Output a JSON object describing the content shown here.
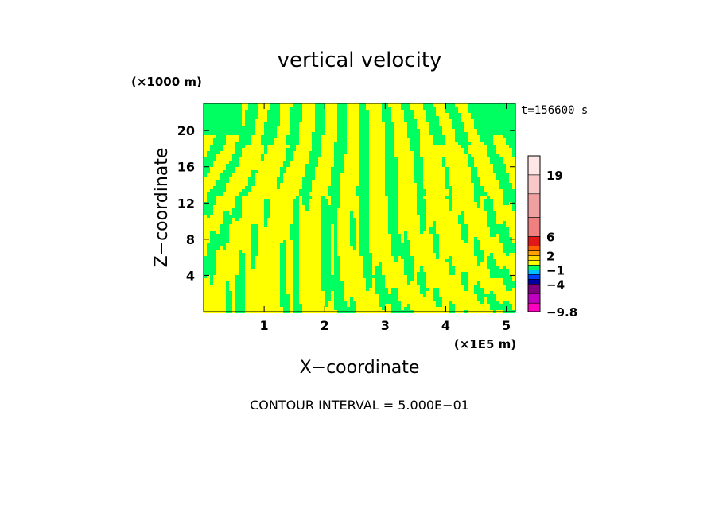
{
  "chart_data": {
    "type": "heatmap",
    "title": "vertical velocity",
    "xlabel": "X−coordinate",
    "ylabel": "Z−coordinate",
    "x_unit_label": "(×1E5 m)",
    "y_unit_label": "(×1000 m)",
    "xlim": [
      0,
      5.15
    ],
    "ylim": [
      0,
      23
    ],
    "x_ticks": [
      1,
      2,
      3,
      4,
      5
    ],
    "x_tick_labels": [
      "1",
      "2",
      "3",
      "4",
      "5"
    ],
    "y_ticks": [
      4,
      8,
      12,
      16,
      20
    ],
    "y_tick_labels": [
      "4",
      "8",
      "12",
      "16",
      "20"
    ],
    "time_label": "t=156600 s",
    "footer": "CONTOUR INTERVAL = 5.000E−01",
    "colorbar": {
      "min": -9.8,
      "max": 23,
      "labels": [
        {
          "value": 19,
          "text": "19"
        },
        {
          "value": 6,
          "text": "6"
        },
        {
          "value": 2,
          "text": "2"
        },
        {
          "value": -1,
          "text": "−1"
        },
        {
          "value": -4,
          "text": "−4"
        },
        {
          "value": -9.8,
          "text": "−9.8"
        }
      ],
      "bands": [
        {
          "from": 19,
          "to": 23,
          "color": "#ffe6e6"
        },
        {
          "from": 15,
          "to": 19,
          "color": "#f8c8c8"
        },
        {
          "from": 10,
          "to": 15,
          "color": "#f0a0a0"
        },
        {
          "from": 6,
          "to": 10,
          "color": "#f08080"
        },
        {
          "from": 4,
          "to": 6,
          "color": "#e01818"
        },
        {
          "from": 3,
          "to": 4,
          "color": "#ff6000"
        },
        {
          "from": 2,
          "to": 3,
          "color": "#ffa000"
        },
        {
          "from": 1,
          "to": 2,
          "color": "#ffd800"
        },
        {
          "from": 0,
          "to": 1,
          "color": "#ffff00"
        },
        {
          "from": -1,
          "to": 0,
          "color": "#00ff60"
        },
        {
          "from": -2,
          "to": -1,
          "color": "#00c0ff"
        },
        {
          "from": -3,
          "to": -2,
          "color": "#0040ff"
        },
        {
          "from": -4,
          "to": -3,
          "color": "#0000a0"
        },
        {
          "from": -6,
          "to": -4,
          "color": "#800080"
        },
        {
          "from": -8,
          "to": -6,
          "color": "#c000c0"
        },
        {
          "from": -9.8,
          "to": -8,
          "color": "#ff00c0"
        }
      ]
    },
    "field_colors": {
      "positive": "#ffff00",
      "negative": "#00ff60"
    }
  }
}
